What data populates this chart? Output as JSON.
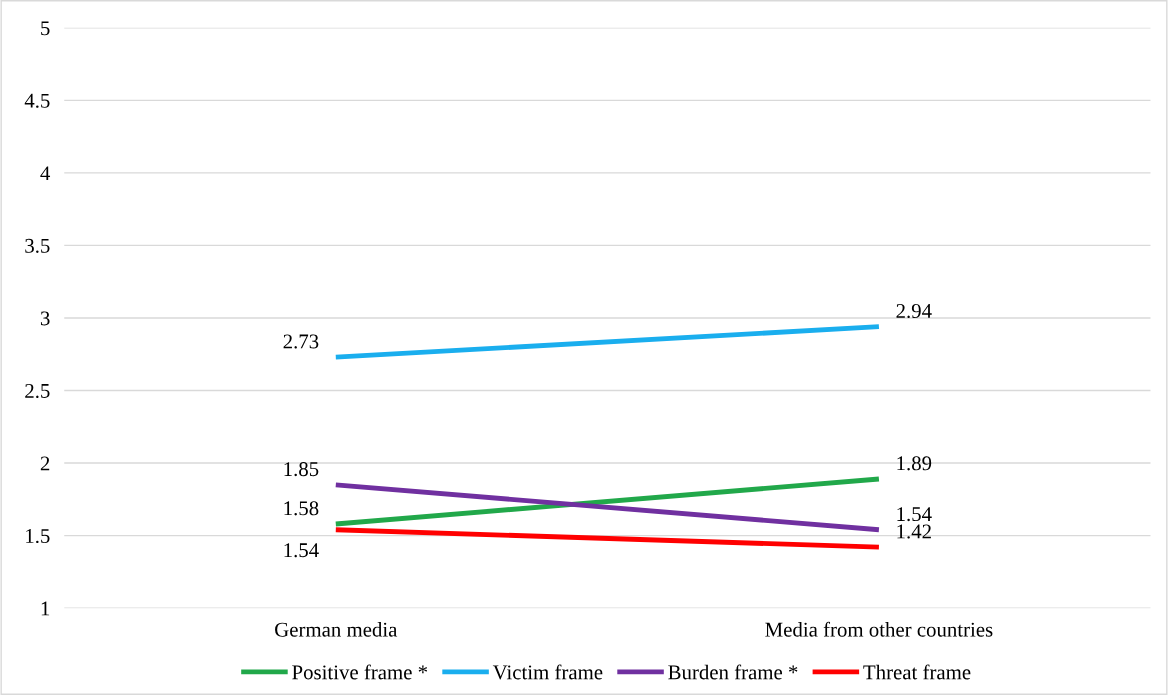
{
  "chart_data": {
    "type": "line",
    "categories": [
      "German media",
      "Media from other countries"
    ],
    "series": [
      {
        "name": "Positive frame *",
        "color": "#21a84a",
        "values": [
          1.58,
          1.89
        ]
      },
      {
        "name": "Victim frame",
        "color": "#1aaeee",
        "values": [
          2.73,
          2.94
        ]
      },
      {
        "name": "Burden frame *",
        "color": "#7030a0",
        "values": [
          1.85,
          1.54
        ]
      },
      {
        "name": "Threat frame",
        "color": "#ff0000",
        "values": [
          1.54,
          1.42
        ]
      }
    ],
    "ylim": [
      1,
      5
    ],
    "yticks": [
      1,
      1.5,
      2,
      2.5,
      3,
      3.5,
      4,
      4.5,
      5
    ],
    "grid": "y",
    "legend": "bottom",
    "data_labels": true,
    "marker": "none",
    "line_style": "solid"
  }
}
